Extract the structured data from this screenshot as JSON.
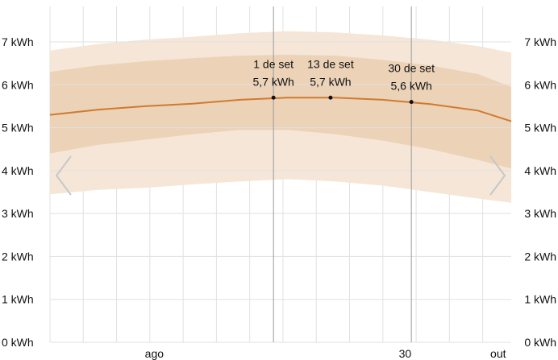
{
  "chart_data": {
    "type": "area",
    "title": "",
    "xlabel": "",
    "ylabel": "",
    "y_unit": "kWh",
    "ylim": [
      0,
      7
    ],
    "y_ticks": [
      "0 kWh",
      "1 kWh",
      "2 kWh",
      "3 kWh",
      "4 kWh",
      "5 kWh",
      "6 kWh",
      "7 kWh"
    ],
    "x_range": [
      "2024-07-16",
      "2024-10-21"
    ],
    "x_tick_labels": [
      {
        "label": "ago",
        "date": "2024-08-01"
      },
      {
        "label": "30",
        "date": "2024-09-30"
      },
      {
        "label": "out",
        "date": "2024-10-01"
      }
    ],
    "x": [
      "2024-07-16",
      "2024-07-26",
      "2024-08-05",
      "2024-08-15",
      "2024-08-25",
      "2024-09-04",
      "2024-09-14",
      "2024-09-24",
      "2024-10-04",
      "2024-10-14",
      "2024-10-21"
    ],
    "series": [
      {
        "values": [
          5.3,
          5.42,
          5.5,
          5.56,
          5.65,
          5.7,
          5.7,
          5.65,
          5.55,
          5.4,
          5.15
        ]
      },
      {
        "values": [
          4.4,
          4.6,
          4.72,
          4.85,
          4.95,
          4.95,
          4.85,
          4.7,
          4.5,
          4.25,
          4.05
        ]
      },
      {
        "values": [
          6.3,
          6.45,
          6.55,
          6.62,
          6.68,
          6.7,
          6.68,
          6.58,
          6.45,
          6.25,
          5.95
        ]
      },
      {
        "values": [
          3.45,
          3.55,
          3.6,
          3.68,
          3.75,
          3.8,
          3.75,
          3.65,
          3.5,
          3.35,
          3.25
        ]
      },
      {
        "values": [
          6.8,
          6.95,
          7.05,
          7.12,
          7.2,
          7.25,
          7.22,
          7.15,
          7.05,
          6.9,
          6.75
        ]
      }
    ],
    "annotations": [
      {
        "date": "2024-09-01",
        "line1": "1 de set",
        "line2": "5,7 kWh",
        "value": 5.7
      },
      {
        "date": "2024-09-13",
        "line1": "13 de set",
        "line2": "5,7 kWh",
        "value": 5.7
      },
      {
        "date": "2024-09-30",
        "line1": "30 de set",
        "line2": "5,6 kWh",
        "value": 5.6
      }
    ],
    "grid": true,
    "legend": "none",
    "colors": {
      "line": "#d07a30",
      "band_inner": "#ecd2b7",
      "band_outer": "#f5e6d7",
      "grid": "#e1e1e1",
      "marker_line": "#9a9a9a",
      "nav_arrow": "#c8c8c8"
    }
  },
  "nav": {
    "prev_icon": "chevron-left-icon",
    "next_icon": "chevron-right-icon"
  }
}
